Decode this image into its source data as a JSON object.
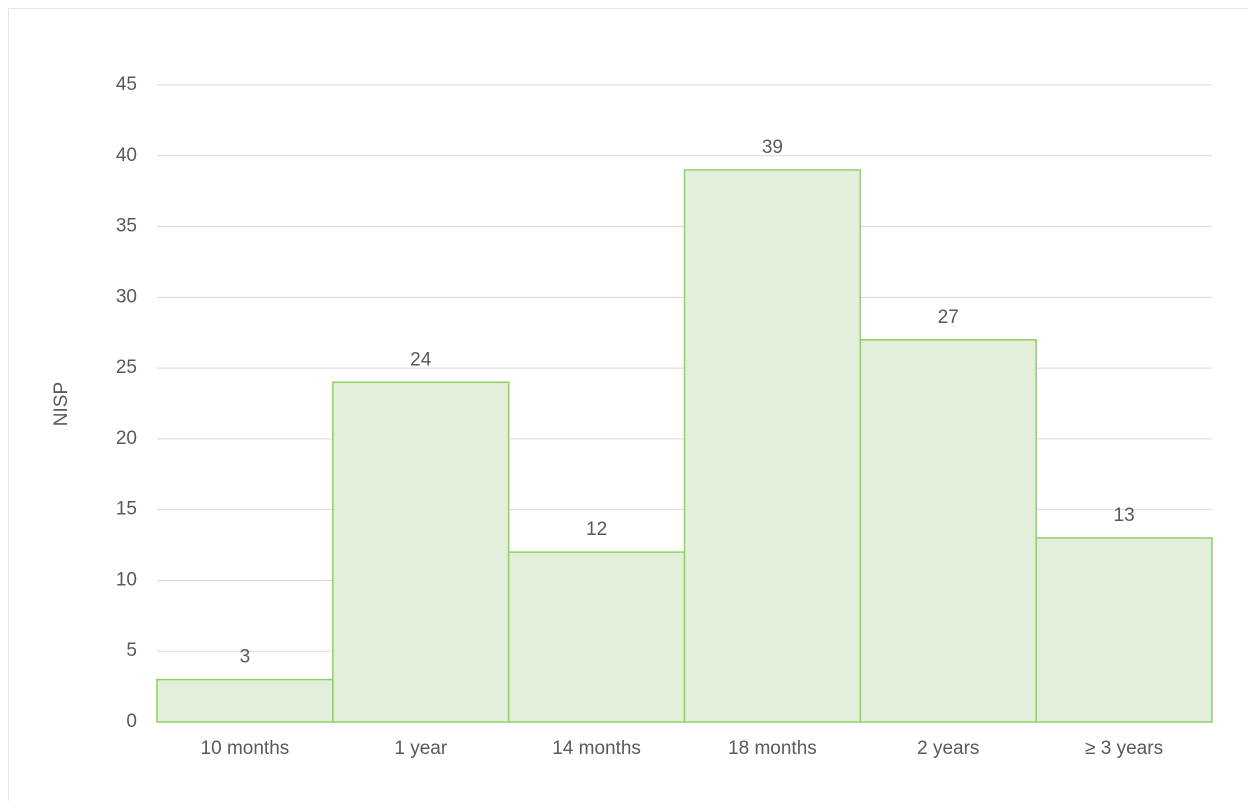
{
  "chart_data": {
    "type": "bar",
    "y_label": "NISP",
    "categories": [
      "10 months",
      "1 year",
      "14 months",
      "18 months",
      "2 years",
      "≥ 3 years"
    ],
    "values": [
      3,
      24,
      12,
      39,
      27,
      13
    ],
    "color": "#e2efda",
    "edge_color": "#8fd163",
    "ylim": [
      0,
      45
    ],
    "yticks": [
      0,
      5,
      10,
      15,
      20,
      25,
      30,
      35,
      40,
      45
    ],
    "grid": true
  }
}
